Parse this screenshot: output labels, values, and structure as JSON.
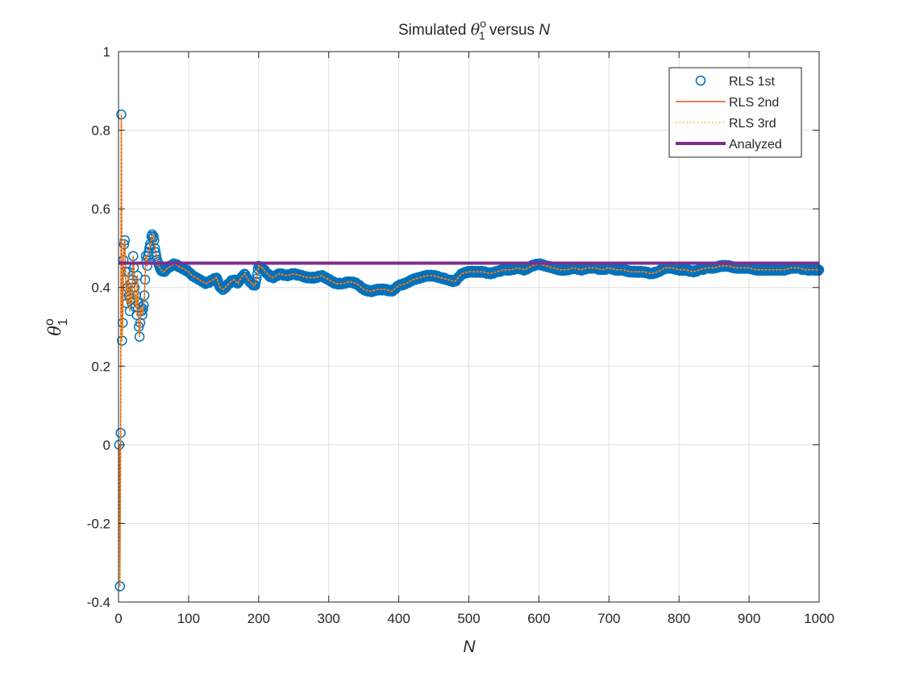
{
  "chart_data": {
    "type": "line",
    "title_parts": {
      "pre": "Simulated ",
      "theta": "θ",
      "sup": "o",
      "sub": "1",
      "post": " versus ",
      "var": "N"
    },
    "xlabel": "N",
    "ylabel_parts": {
      "theta": "θ",
      "sup": "o",
      "sub": "1"
    },
    "xlim": [
      0,
      1000
    ],
    "ylim": [
      -0.4,
      1
    ],
    "xticks": [
      0,
      100,
      200,
      300,
      400,
      500,
      600,
      700,
      800,
      900,
      1000
    ],
    "xtick_labels": [
      "0",
      "100",
      "200",
      "300",
      "400",
      "500",
      "600",
      "700",
      "800",
      "900",
      "1000"
    ],
    "yticks": [
      -0.4,
      -0.2,
      0,
      0.2,
      0.4,
      0.6,
      0.8,
      1
    ],
    "ytick_labels": [
      "-0.4",
      "-0.2",
      "0",
      "0.2",
      "0.4",
      "0.6",
      "0.8",
      "1"
    ],
    "grid": true,
    "legend_position": "top-right",
    "series": [
      {
        "name": "RLS 1st",
        "style": "markers-circle",
        "color": "#0072BD"
      },
      {
        "name": "RLS 2nd",
        "style": "solid",
        "color": "#D95319"
      },
      {
        "name": "RLS 3rd",
        "style": "dotted",
        "color": "#EDB120"
      },
      {
        "name": "Analyzed",
        "style": "thick-solid",
        "color": "#7E2F8E",
        "constant": 0.462
      }
    ],
    "rls_points": [
      [
        1,
        0.0
      ],
      [
        2,
        -0.36
      ],
      [
        3,
        0.03
      ],
      [
        4,
        0.84
      ],
      [
        5,
        0.265
      ],
      [
        6,
        0.31
      ],
      [
        7,
        0.47
      ],
      [
        8,
        0.51
      ],
      [
        9,
        0.52
      ],
      [
        10,
        0.44
      ],
      [
        11,
        0.39
      ],
      [
        12,
        0.36
      ],
      [
        13,
        0.4
      ],
      [
        14,
        0.44
      ],
      [
        15,
        0.38
      ],
      [
        16,
        0.34
      ],
      [
        17,
        0.37
      ],
      [
        18,
        0.41
      ],
      [
        19,
        0.36
      ],
      [
        20,
        0.42
      ],
      [
        21,
        0.48
      ],
      [
        22,
        0.45
      ],
      [
        23,
        0.4
      ],
      [
        24,
        0.35
      ],
      [
        25,
        0.38
      ],
      [
        26,
        0.33
      ],
      [
        27,
        0.43
      ],
      [
        28,
        0.36
      ],
      [
        29,
        0.3
      ],
      [
        30,
        0.275
      ],
      [
        31,
        0.31
      ],
      [
        32,
        0.35
      ],
      [
        33,
        0.34
      ],
      [
        34,
        0.33
      ],
      [
        35,
        0.345
      ],
      [
        36,
        0.355
      ],
      [
        37,
        0.38
      ],
      [
        38,
        0.42
      ],
      [
        39,
        0.48
      ],
      [
        40,
        0.47
      ],
      [
        41,
        0.455
      ],
      [
        42,
        0.48
      ],
      [
        43,
        0.49
      ],
      [
        44,
        0.5
      ],
      [
        45,
        0.51
      ],
      [
        46,
        0.505
      ],
      [
        47,
        0.53
      ],
      [
        48,
        0.535
      ],
      [
        49,
        0.525
      ],
      [
        50,
        0.53
      ],
      [
        51,
        0.52
      ],
      [
        52,
        0.5
      ],
      [
        53,
        0.49
      ],
      [
        54,
        0.48
      ],
      [
        55,
        0.47
      ],
      [
        56,
        0.465
      ],
      [
        57,
        0.46
      ],
      [
        58,
        0.455
      ],
      [
        59,
        0.45
      ],
      [
        60,
        0.445
      ],
      [
        65,
        0.44
      ],
      [
        70,
        0.45
      ],
      [
        75,
        0.455
      ],
      [
        80,
        0.46
      ],
      [
        85,
        0.455
      ],
      [
        90,
        0.45
      ],
      [
        95,
        0.445
      ],
      [
        100,
        0.44
      ],
      [
        105,
        0.43
      ],
      [
        110,
        0.425
      ],
      [
        115,
        0.42
      ],
      [
        120,
        0.415
      ],
      [
        125,
        0.41
      ],
      [
        130,
        0.415
      ],
      [
        135,
        0.42
      ],
      [
        140,
        0.425
      ],
      [
        145,
        0.4
      ],
      [
        150,
        0.395
      ],
      [
        155,
        0.405
      ],
      [
        160,
        0.415
      ],
      [
        165,
        0.42
      ],
      [
        170,
        0.41
      ],
      [
        175,
        0.425
      ],
      [
        180,
        0.435
      ],
      [
        185,
        0.42
      ],
      [
        190,
        0.41
      ],
      [
        195,
        0.405
      ],
      [
        200,
        0.455
      ],
      [
        205,
        0.45
      ],
      [
        210,
        0.44
      ],
      [
        215,
        0.43
      ],
      [
        220,
        0.425
      ],
      [
        225,
        0.43
      ],
      [
        230,
        0.435
      ],
      [
        240,
        0.43
      ],
      [
        250,
        0.435
      ],
      [
        260,
        0.43
      ],
      [
        270,
        0.425
      ],
      [
        280,
        0.425
      ],
      [
        290,
        0.43
      ],
      [
        300,
        0.42
      ],
      [
        310,
        0.41
      ],
      [
        320,
        0.41
      ],
      [
        330,
        0.415
      ],
      [
        340,
        0.41
      ],
      [
        350,
        0.395
      ],
      [
        360,
        0.39
      ],
      [
        370,
        0.395
      ],
      [
        380,
        0.395
      ],
      [
        390,
        0.39
      ],
      [
        400,
        0.405
      ],
      [
        410,
        0.41
      ],
      [
        420,
        0.42
      ],
      [
        430,
        0.425
      ],
      [
        440,
        0.43
      ],
      [
        450,
        0.43
      ],
      [
        460,
        0.425
      ],
      [
        470,
        0.42
      ],
      [
        480,
        0.415
      ],
      [
        490,
        0.435
      ],
      [
        500,
        0.44
      ],
      [
        510,
        0.44
      ],
      [
        520,
        0.44
      ],
      [
        530,
        0.435
      ],
      [
        540,
        0.44
      ],
      [
        550,
        0.445
      ],
      [
        560,
        0.445
      ],
      [
        570,
        0.45
      ],
      [
        580,
        0.445
      ],
      [
        590,
        0.455
      ],
      [
        600,
        0.46
      ],
      [
        610,
        0.455
      ],
      [
        620,
        0.45
      ],
      [
        630,
        0.445
      ],
      [
        640,
        0.445
      ],
      [
        650,
        0.45
      ],
      [
        660,
        0.445
      ],
      [
        670,
        0.45
      ],
      [
        680,
        0.45
      ],
      [
        690,
        0.445
      ],
      [
        700,
        0.45
      ],
      [
        710,
        0.445
      ],
      [
        720,
        0.445
      ],
      [
        730,
        0.44
      ],
      [
        740,
        0.44
      ],
      [
        750,
        0.44
      ],
      [
        760,
        0.435
      ],
      [
        770,
        0.44
      ],
      [
        780,
        0.45
      ],
      [
        790,
        0.45
      ],
      [
        800,
        0.445
      ],
      [
        810,
        0.445
      ],
      [
        820,
        0.44
      ],
      [
        830,
        0.445
      ],
      [
        840,
        0.45
      ],
      [
        850,
        0.45
      ],
      [
        860,
        0.455
      ],
      [
        870,
        0.455
      ],
      [
        880,
        0.45
      ],
      [
        890,
        0.45
      ],
      [
        900,
        0.45
      ],
      [
        910,
        0.445
      ],
      [
        920,
        0.445
      ],
      [
        930,
        0.445
      ],
      [
        940,
        0.445
      ],
      [
        950,
        0.445
      ],
      [
        960,
        0.45
      ],
      [
        970,
        0.45
      ],
      [
        980,
        0.445
      ],
      [
        990,
        0.445
      ],
      [
        1000,
        0.445
      ]
    ]
  }
}
